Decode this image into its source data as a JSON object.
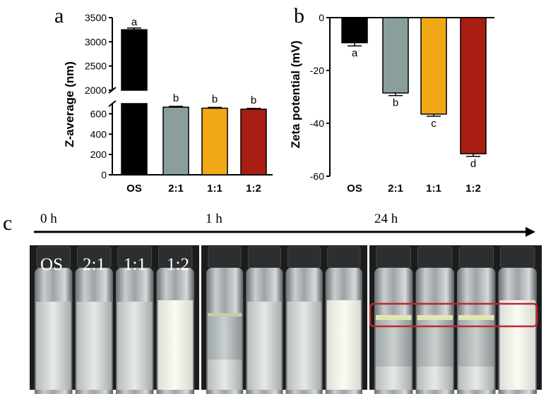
{
  "panel_labels": {
    "a": "a",
    "b": "b",
    "c": "c"
  },
  "colors": {
    "OS": "#000000",
    "2:1": "#8a9f9b",
    "1:1": "#f0a814",
    "1:2": "#a81e12",
    "highlight": "#c0272d"
  },
  "chart_data": [
    {
      "type": "bar",
      "panel": "a",
      "categories": [
        "OS",
        "2:1",
        "1:1",
        "1:2"
      ],
      "values": [
        3250,
        665,
        655,
        645
      ],
      "errors": [
        35,
        8,
        8,
        8
      ],
      "significance": [
        "a",
        "b",
        "b",
        "b"
      ],
      "ylabel": "Z-average (nm)",
      "broken_axis": {
        "lower_range": [
          0,
          700
        ],
        "upper_range": [
          2000,
          3500
        ]
      },
      "yticks_lower": [
        "0",
        "200",
        "400",
        "600"
      ],
      "yticks_upper": [
        "2000",
        "2500",
        "3000",
        "3500"
      ]
    },
    {
      "type": "bar",
      "panel": "b",
      "categories": [
        "OS",
        "2:1",
        "1:1",
        "1:2"
      ],
      "values": [
        -9.5,
        -28.5,
        -36.5,
        -51.5
      ],
      "errors": [
        1.2,
        1.0,
        0.8,
        1.0
      ],
      "significance": [
        "a",
        "b",
        "c",
        "d"
      ],
      "ylabel": "Zeta potential (mV)",
      "ylim": [
        -60,
        0
      ],
      "yticks": [
        "0",
        "-20",
        "-40",
        "-60"
      ]
    }
  ],
  "timeline": {
    "labels": [
      "0 h",
      "1 h",
      "24 h"
    ]
  },
  "photo_labels": [
    "OS",
    "2:1",
    "1:1",
    "1:2"
  ]
}
